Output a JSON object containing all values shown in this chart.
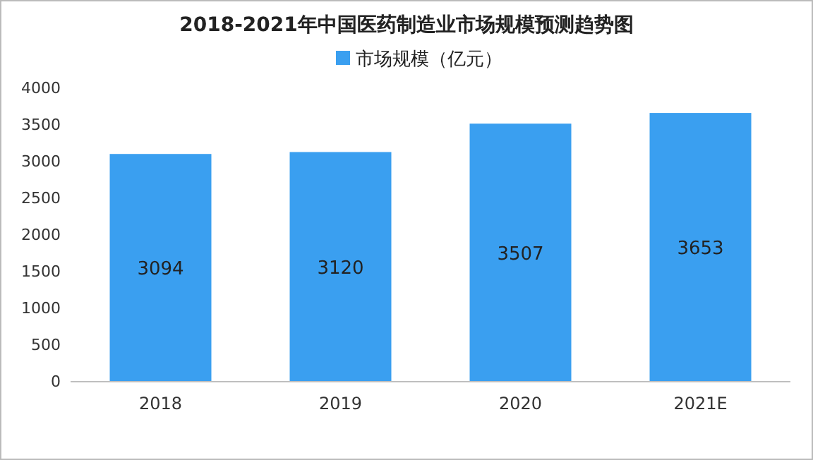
{
  "chart_data": {
    "type": "bar",
    "title": "2018-2021年中国医药制造业市场规模预测趋势图",
    "categories": [
      "2018",
      "2019",
      "2020",
      "2021E"
    ],
    "series": [
      {
        "name": "市场规模（亿元）",
        "color": "#3a9ff0",
        "values": [
          3094,
          3120,
          3507,
          3653
        ]
      }
    ],
    "ylim": [
      0,
      4000
    ],
    "yticks": [
      0,
      500,
      1000,
      1500,
      2000,
      2500,
      3000,
      3500,
      4000
    ],
    "grid": false,
    "legend": "top",
    "data_labels": true
  }
}
